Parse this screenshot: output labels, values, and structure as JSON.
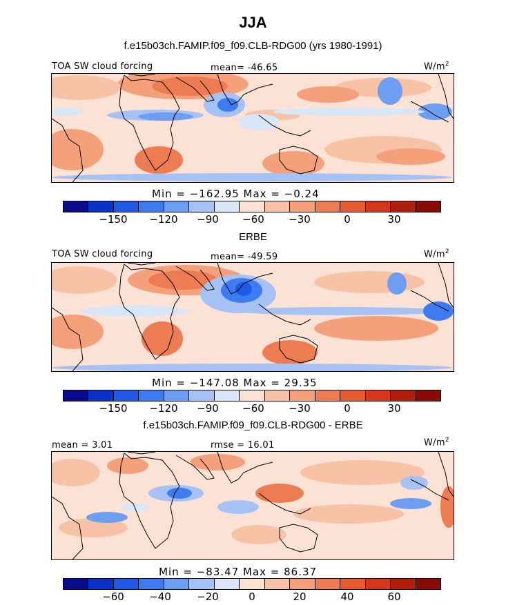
{
  "figure": {
    "title": "JJA",
    "units": "W/m",
    "units_sup": "2"
  },
  "panels": [
    {
      "heading": "f.e15b03ch.FAMIP.f09_f09.CLB-RDG00 (yrs 1980-1991)",
      "left_label": "TOA SW cloud forcing",
      "center_label": "mean= -46.65",
      "minmax": "Min = −162.95 Max =  −0.24",
      "tick_labels": [
        "−150",
        "−120",
        "−90",
        "−60",
        "−30",
        "0",
        "30"
      ]
    },
    {
      "heading": "ERBE",
      "left_label": "TOA SW cloud forcing",
      "center_label": "mean= -49.59",
      "minmax": "Min = −147.08 Max =  29.35",
      "tick_labels": [
        "−150",
        "−120",
        "−90",
        "−60",
        "−30",
        "0",
        "30"
      ]
    },
    {
      "heading": "f.e15b03ch.FAMIP.f09_f09.CLB-RDG00 - ERBE",
      "left_label": "mean =   3.01",
      "center_label": "rmse =  16.01",
      "minmax": "Min = −83.47 Max =  86.37",
      "tick_labels": [
        "−60",
        "−40",
        "−20",
        "0",
        "20",
        "40",
        "60"
      ]
    }
  ],
  "chart_data": [
    {
      "type": "heatmap",
      "title": "JJA",
      "subtitle": "f.e15b03ch.FAMIP.f09_f09.CLB-RDG00 (yrs 1980-1991)",
      "variable": "TOA SW cloud forcing",
      "units": "W/m2",
      "mean": -46.65,
      "min": -162.95,
      "max": -0.24,
      "colorbar_ticks": [
        -150,
        -120,
        -90,
        -60,
        -30,
        0,
        30
      ],
      "colorbar_range": [
        -180,
        60
      ],
      "colorbar_colors": [
        "#0a0a8c",
        "#0a32c8",
        "#1e5ae6",
        "#3c7cf0",
        "#6e9ef2",
        "#a6c2f4",
        "#d8e6f8",
        "#fbe2d4",
        "#f8c2a6",
        "#f4a07a",
        "#ee7c52",
        "#e85a30",
        "#d43818",
        "#b01e0c",
        "#8a0a04"
      ]
    },
    {
      "type": "heatmap",
      "title": "ERBE",
      "variable": "TOA SW cloud forcing",
      "units": "W/m2",
      "mean": -49.59,
      "min": -147.08,
      "max": 29.35,
      "colorbar_ticks": [
        -150,
        -120,
        -90,
        -60,
        -30,
        0,
        30
      ],
      "colorbar_range": [
        -180,
        60
      ],
      "colorbar_colors": [
        "#0a0a8c",
        "#0a32c8",
        "#1e5ae6",
        "#3c7cf0",
        "#6e9ef2",
        "#a6c2f4",
        "#d8e6f8",
        "#fbe2d4",
        "#f8c2a6",
        "#f4a07a",
        "#ee7c52",
        "#e85a30",
        "#d43818",
        "#b01e0c",
        "#8a0a04"
      ]
    },
    {
      "type": "heatmap",
      "title": "f.e15b03ch.FAMIP.f09_f09.CLB-RDG00 - ERBE",
      "units": "W/m2",
      "mean": 3.01,
      "rmse": 16.01,
      "min": -83.47,
      "max": 86.37,
      "colorbar_ticks": [
        -60,
        -40,
        -20,
        0,
        20,
        40,
        60
      ],
      "colorbar_range": [
        -80,
        80
      ],
      "colorbar_colors": [
        "#0a0a8c",
        "#0a32c8",
        "#1e5ae6",
        "#3c7cf0",
        "#6e9ef2",
        "#a6c2f4",
        "#d8e6f8",
        "#fbe2d4",
        "#f8c2a6",
        "#f4a07a",
        "#ee7c52",
        "#e85a30",
        "#d43818",
        "#b01e0c",
        "#8a0a04"
      ]
    }
  ]
}
